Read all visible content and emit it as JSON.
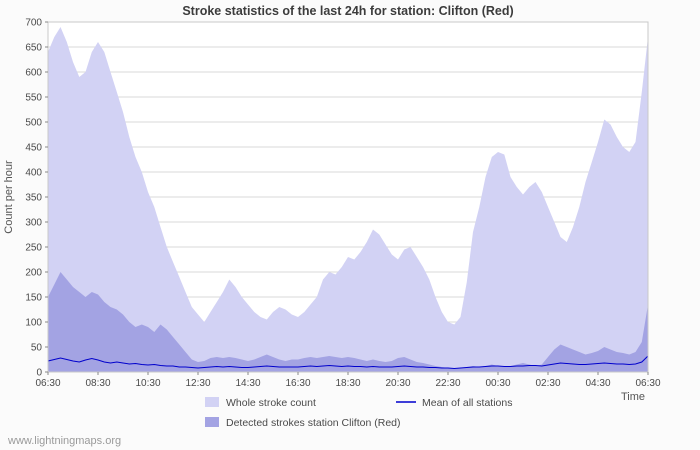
{
  "title": "Stroke statistics of the last 24h for station: Clifton (Red)",
  "ylabel": "Count per hour",
  "xlabel": "Time",
  "watermark": "www.lightningmaps.org",
  "legend": {
    "whole": "Whole stroke count",
    "mean": "Mean of all stations",
    "detected": "Detected strokes station Clifton (Red)"
  },
  "colors": {
    "whole_fill": "#d2d2f4",
    "detected_fill": "#a3a3e3",
    "mean_line": "#0000cc",
    "grid": "#d8d8d8",
    "border": "#c8c8c8",
    "tick": "#888888"
  },
  "chart_data": {
    "type": "area",
    "title": "Stroke statistics of the last 24h for station: Clifton (Red)",
    "xlabel": "Time",
    "ylabel": "Count per hour",
    "ylim": [
      0,
      700
    ],
    "y_ticks": [
      0,
      50,
      100,
      150,
      200,
      250,
      300,
      350,
      400,
      450,
      500,
      550,
      600,
      650,
      700
    ],
    "x_tick_labels": [
      "06:30",
      "08:30",
      "10:30",
      "12:30",
      "14:30",
      "16:30",
      "18:30",
      "20:30",
      "22:30",
      "00:30",
      "02:30",
      "04:30",
      "06:30"
    ],
    "x_range_hours": 24,
    "x_step_hours": 0.25,
    "grid": "horizontal",
    "legend_position": "bottom",
    "series": [
      {
        "id": "whole",
        "name": "Whole stroke count",
        "kind": "area",
        "values": [
          640,
          670,
          690,
          660,
          620,
          590,
          600,
          640,
          660,
          640,
          600,
          560,
          520,
          470,
          430,
          400,
          360,
          330,
          290,
          250,
          220,
          190,
          160,
          130,
          115,
          100,
          120,
          140,
          160,
          185,
          170,
          150,
          135,
          120,
          110,
          105,
          120,
          130,
          125,
          115,
          110,
          120,
          135,
          150,
          185,
          200,
          195,
          210,
          230,
          225,
          240,
          260,
          285,
          275,
          255,
          235,
          225,
          245,
          250,
          230,
          210,
          185,
          150,
          120,
          100,
          95,
          110,
          180,
          280,
          330,
          390,
          430,
          440,
          435,
          390,
          370,
          355,
          370,
          380,
          360,
          330,
          300,
          270,
          260,
          290,
          330,
          380,
          420,
          460,
          505,
          495,
          470,
          450,
          440,
          460,
          560,
          670
        ]
      },
      {
        "id": "detected",
        "name": "Detected strokes station Clifton (Red)",
        "kind": "area",
        "values": [
          150,
          175,
          200,
          185,
          170,
          160,
          150,
          160,
          155,
          140,
          130,
          125,
          115,
          100,
          90,
          95,
          90,
          80,
          95,
          85,
          70,
          55,
          40,
          25,
          20,
          22,
          28,
          30,
          28,
          30,
          28,
          25,
          22,
          25,
          30,
          35,
          30,
          25,
          22,
          25,
          25,
          28,
          30,
          28,
          30,
          32,
          30,
          28,
          30,
          28,
          25,
          22,
          25,
          22,
          20,
          22,
          28,
          30,
          25,
          20,
          18,
          15,
          12,
          10,
          8,
          6,
          8,
          10,
          12,
          10,
          12,
          15,
          12,
          10,
          12,
          15,
          18,
          15,
          12,
          15,
          30,
          45,
          55,
          50,
          45,
          40,
          35,
          38,
          42,
          50,
          45,
          40,
          38,
          35,
          40,
          60,
          135
        ]
      },
      {
        "id": "mean",
        "name": "Mean of all stations",
        "kind": "line",
        "values": [
          22,
          25,
          28,
          25,
          22,
          20,
          24,
          27,
          24,
          20,
          18,
          20,
          18,
          16,
          17,
          15,
          14,
          15,
          13,
          12,
          12,
          10,
          10,
          9,
          8,
          9,
          10,
          11,
          10,
          11,
          10,
          9,
          9,
          10,
          11,
          12,
          11,
          10,
          10,
          10,
          10,
          11,
          12,
          11,
          12,
          13,
          12,
          11,
          12,
          11,
          11,
          10,
          11,
          10,
          10,
          10,
          11,
          12,
          11,
          10,
          10,
          9,
          9,
          8,
          8,
          7,
          8,
          9,
          10,
          10,
          11,
          12,
          12,
          11,
          11,
          12,
          12,
          13,
          13,
          12,
          14,
          16,
          18,
          17,
          16,
          15,
          15,
          16,
          17,
          18,
          17,
          16,
          16,
          15,
          16,
          20,
          32
        ]
      }
    ]
  }
}
